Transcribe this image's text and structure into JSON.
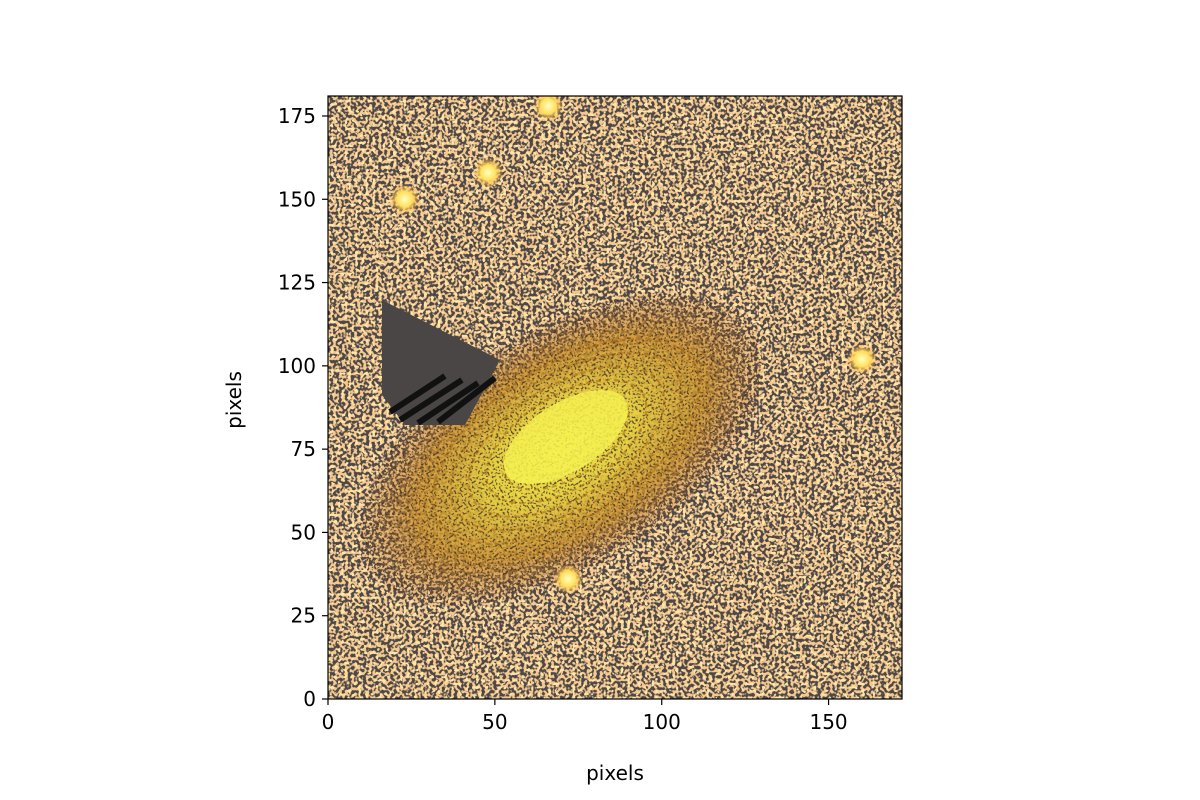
{
  "figure": {
    "xlabel": "pixels",
    "ylabel": "pixels",
    "xticks": [
      "0",
      "50",
      "100",
      "150"
    ],
    "yticks": [
      "0",
      "25",
      "50",
      "75",
      "100",
      "125",
      "150",
      "175"
    ]
  },
  "image_data": {
    "type": "astronomical image (false-color)",
    "colormap": "afmhot",
    "extent_pixels": [
      172,
      181
    ],
    "xlim": [
      0,
      172
    ],
    "ylim": [
      0,
      181
    ],
    "features": [
      {
        "name": "galaxy",
        "center": [
          70,
          75
        ]
      },
      {
        "name": "masked region",
        "center": [
          30,
          100
        ]
      },
      {
        "name": "star",
        "center": [
          23,
          150
        ]
      },
      {
        "name": "star",
        "center": [
          48,
          158
        ]
      },
      {
        "name": "star",
        "center": [
          66,
          178
        ]
      },
      {
        "name": "star",
        "center": [
          72,
          36
        ]
      },
      {
        "name": "star",
        "center": [
          160,
          102
        ]
      }
    ]
  },
  "colors": {
    "background": "#4d4848",
    "noise_low": "#e07a3a",
    "noise_high": "#ffc060",
    "core": "#f0ee50",
    "mask": "#4a4646",
    "mask_edge": "#111111"
  }
}
